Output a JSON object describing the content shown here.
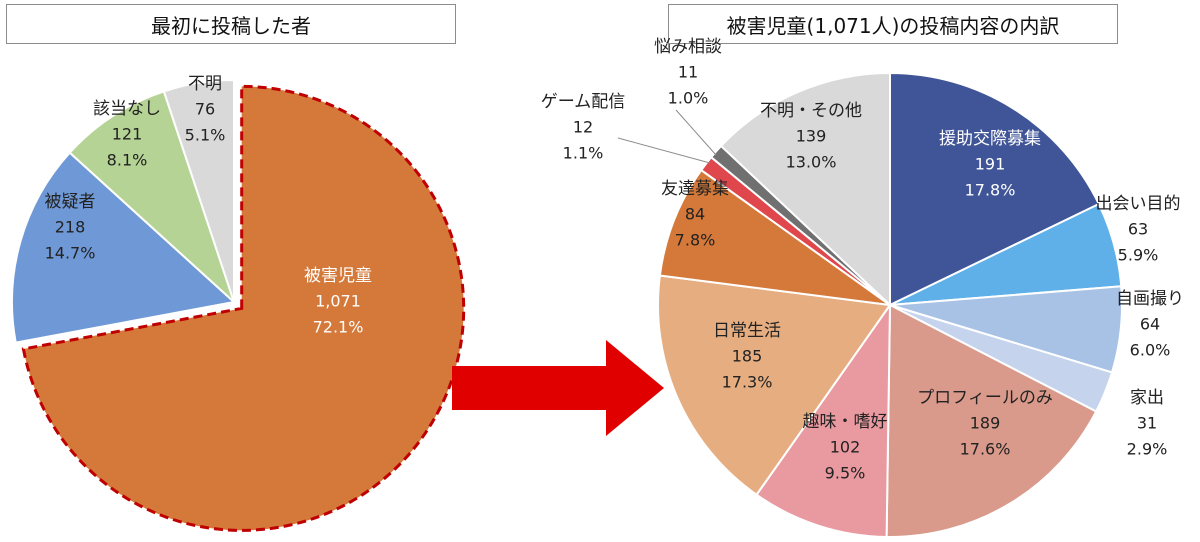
{
  "titles": {
    "left": "最初に投稿した者",
    "right": "被害児童(1,071人)の投稿内容の内訳"
  },
  "colors": {
    "arrow": "#e00000",
    "highlight_border": "#c00000"
  },
  "chart_data": [
    {
      "type": "pie",
      "title": "最初に投稿した者",
      "slices": [
        {
          "name": "被害児童",
          "value": 1071,
          "percent": "72.1%",
          "value_label": "1,071",
          "color": "#d4793a",
          "label_color": "#ffffff",
          "highlighted": true
        },
        {
          "name": "被疑者",
          "value": 218,
          "percent": "14.7%",
          "value_label": "218",
          "color": "#6f98d6",
          "label_color": "#222222"
        },
        {
          "name": "該当なし",
          "value": 121,
          "percent": "8.1%",
          "value_label": "121",
          "color": "#b5d394",
          "label_color": "#222222"
        },
        {
          "name": "不明",
          "value": 76,
          "percent": "5.1%",
          "value_label": "76",
          "color": "#d9d9d9",
          "label_color": "#222222"
        }
      ]
    },
    {
      "type": "pie",
      "title": "被害児童(1,071人)の投稿内容の内訳",
      "slices": [
        {
          "name": "援助交際募集",
          "value": 191,
          "percent": "17.8%",
          "value_label": "191",
          "color": "#3f5597",
          "label_color": "#ffffff"
        },
        {
          "name": "出会い目的",
          "value": 63,
          "percent": "5.9%",
          "value_label": "63",
          "color": "#5fb0e8",
          "label_color": "#222222"
        },
        {
          "name": "自画撮り",
          "value": 64,
          "percent": "6.0%",
          "value_label": "64",
          "color": "#a8c2e6",
          "label_color": "#222222"
        },
        {
          "name": "家出",
          "value": 31,
          "percent": "2.9%",
          "value_label": "31",
          "color": "#c5d3ec",
          "label_color": "#222222"
        },
        {
          "name": "プロフィールのみ",
          "value": 189,
          "percent": "17.6%",
          "value_label": "189",
          "color": "#d99a8b",
          "label_color": "#222222"
        },
        {
          "name": "趣味・嗜好",
          "value": 102,
          "percent": "9.5%",
          "value_label": "102",
          "color": "#e89aa0",
          "label_color": "#222222"
        },
        {
          "name": "日常生活",
          "value": 185,
          "percent": "17.3%",
          "value_label": "185",
          "color": "#e5ad80",
          "label_color": "#222222"
        },
        {
          "name": "友達募集",
          "value": 84,
          "percent": "7.8%",
          "value_label": "84",
          "color": "#d4793a",
          "label_color": "#222222"
        },
        {
          "name": "ゲーム配信",
          "value": 12,
          "percent": "1.1%",
          "value_label": "12",
          "color": "#e0474c",
          "label_color": "#222222"
        },
        {
          "name": "悩み相談",
          "value": 11,
          "percent": "1.0%",
          "value_label": "11",
          "color": "#707070",
          "label_color": "#222222"
        },
        {
          "name": "不明・その他",
          "value": 139,
          "percent": "13.0%",
          "value_label": "139",
          "color": "#d9d9d9",
          "label_color": "#222222"
        }
      ]
    }
  ]
}
